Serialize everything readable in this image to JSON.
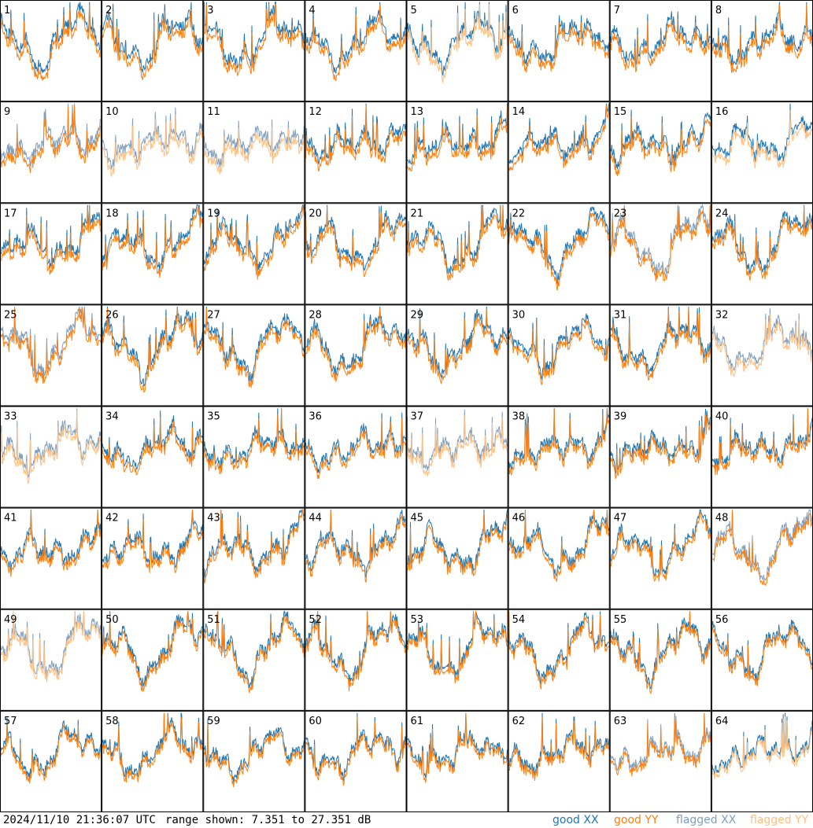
{
  "footer": {
    "timestamp": "2024/11/10 21:36:07 UTC",
    "range_text": "range shown: 7.351 to 27.351 dB"
  },
  "colors": {
    "good_xx": "#1f77b4",
    "good_yy": "#ff7f0e",
    "flagged_xx": "#7f9fbf",
    "flagged_yy": "#ffbf80",
    "grid_line": "#000000"
  },
  "chart_data": {
    "type": "line",
    "panel_count": 64,
    "rows": 8,
    "cols": 8,
    "ylim": [
      7.351,
      27.351
    ],
    "yunit": "dB",
    "series_legend": [
      {
        "key": "good_xx",
        "label": "good XX"
      },
      {
        "key": "good_yy",
        "label": "good YY"
      },
      {
        "key": "flagged_xx",
        "label": "flagged XX"
      },
      {
        "key": "flagged_yy",
        "label": "flagged YY"
      }
    ],
    "panels": [
      {
        "label": "1",
        "xx": "good",
        "yy": "good"
      },
      {
        "label": "2",
        "xx": "good",
        "yy": "good"
      },
      {
        "label": "3",
        "xx": "good",
        "yy": "good"
      },
      {
        "label": "4",
        "xx": "good",
        "yy": "good"
      },
      {
        "label": "5",
        "xx": "good",
        "yy": "flagged"
      },
      {
        "label": "6",
        "xx": "good",
        "yy": "good"
      },
      {
        "label": "7",
        "xx": "good",
        "yy": "good"
      },
      {
        "label": "8",
        "xx": "good",
        "yy": "good"
      },
      {
        "label": "9",
        "xx": "flagged",
        "yy": "good"
      },
      {
        "label": "10",
        "xx": "flagged",
        "yy": "flagged"
      },
      {
        "label": "11",
        "xx": "flagged",
        "yy": "flagged"
      },
      {
        "label": "12",
        "xx": "good",
        "yy": "good"
      },
      {
        "label": "13",
        "xx": "good",
        "yy": "good"
      },
      {
        "label": "14",
        "xx": "good",
        "yy": "good"
      },
      {
        "label": "15",
        "xx": "good",
        "yy": "good"
      },
      {
        "label": "16",
        "xx": "good",
        "yy": "flagged"
      },
      {
        "label": "17",
        "xx": "good",
        "yy": "good"
      },
      {
        "label": "18",
        "xx": "good",
        "yy": "good"
      },
      {
        "label": "19",
        "xx": "good",
        "yy": "good"
      },
      {
        "label": "20",
        "xx": "good",
        "yy": "good"
      },
      {
        "label": "21",
        "xx": "good",
        "yy": "good"
      },
      {
        "label": "22",
        "xx": "good",
        "yy": "good"
      },
      {
        "label": "23",
        "xx": "flagged",
        "yy": "good"
      },
      {
        "label": "24",
        "xx": "good",
        "yy": "good"
      },
      {
        "label": "25",
        "xx": "flagged",
        "yy": "good"
      },
      {
        "label": "26",
        "xx": "good",
        "yy": "good"
      },
      {
        "label": "27",
        "xx": "good",
        "yy": "good"
      },
      {
        "label": "28",
        "xx": "good",
        "yy": "good"
      },
      {
        "label": "29",
        "xx": "good",
        "yy": "good"
      },
      {
        "label": "30",
        "xx": "good",
        "yy": "good"
      },
      {
        "label": "31",
        "xx": "good",
        "yy": "good"
      },
      {
        "label": "32",
        "xx": "flagged",
        "yy": "flagged"
      },
      {
        "label": "33",
        "xx": "flagged",
        "yy": "flagged"
      },
      {
        "label": "34",
        "xx": "good",
        "yy": "good"
      },
      {
        "label": "35",
        "xx": "good",
        "yy": "good"
      },
      {
        "label": "36",
        "xx": "good",
        "yy": "good"
      },
      {
        "label": "37",
        "xx": "flagged",
        "yy": "flagged"
      },
      {
        "label": "38",
        "xx": "good",
        "yy": "good"
      },
      {
        "label": "39",
        "xx": "good",
        "yy": "good"
      },
      {
        "label": "40",
        "xx": "good",
        "yy": "good"
      },
      {
        "label": "41",
        "xx": "good",
        "yy": "good"
      },
      {
        "label": "42",
        "xx": "good",
        "yy": "good"
      },
      {
        "label": "43",
        "xx": "good",
        "yy": "good"
      },
      {
        "label": "44",
        "xx": "good",
        "yy": "good"
      },
      {
        "label": "45",
        "xx": "good",
        "yy": "good"
      },
      {
        "label": "46",
        "xx": "good",
        "yy": "good"
      },
      {
        "label": "47",
        "xx": "good",
        "yy": "good"
      },
      {
        "label": "48",
        "xx": "flagged",
        "yy": "good"
      },
      {
        "label": "49",
        "xx": "flagged",
        "yy": "flagged"
      },
      {
        "label": "50",
        "xx": "good",
        "yy": "good"
      },
      {
        "label": "51",
        "xx": "good",
        "yy": "good"
      },
      {
        "label": "52",
        "xx": "good",
        "yy": "good"
      },
      {
        "label": "53",
        "xx": "good",
        "yy": "good"
      },
      {
        "label": "54",
        "xx": "good",
        "yy": "good"
      },
      {
        "label": "55",
        "xx": "good",
        "yy": "good"
      },
      {
        "label": "56",
        "xx": "good",
        "yy": "good"
      },
      {
        "label": "57",
        "xx": "good",
        "yy": "good"
      },
      {
        "label": "58",
        "xx": "good",
        "yy": "good"
      },
      {
        "label": "59",
        "xx": "good",
        "yy": "good"
      },
      {
        "label": "60",
        "xx": "good",
        "yy": "good"
      },
      {
        "label": "61",
        "xx": "good",
        "yy": "good"
      },
      {
        "label": "62",
        "xx": "good",
        "yy": "good"
      },
      {
        "label": "63",
        "xx": "flagged",
        "yy": "good"
      },
      {
        "label": "64",
        "xx": "good",
        "yy": "flagged"
      }
    ]
  }
}
